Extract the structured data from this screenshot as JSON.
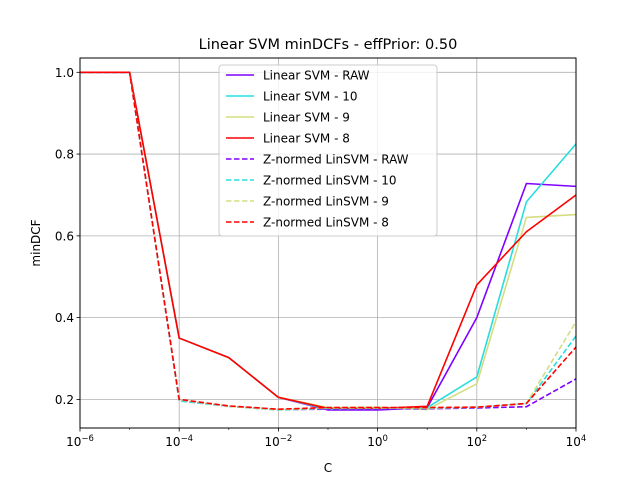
{
  "chart_data": {
    "type": "line",
    "title": "Linear SVM minDCFs - effPrior: 0.50",
    "xlabel": "C",
    "ylabel": "minDCF",
    "xscale": "log",
    "xlim": [
      1e-06,
      10000.0
    ],
    "ylim": [
      0.13,
      1.035
    ],
    "grid": true,
    "legend_position": "top-center",
    "x_tick_labels": [
      {
        "base": "10",
        "exp": "−6"
      },
      {
        "base": "10",
        "exp": "−4"
      },
      {
        "base": "10",
        "exp": "−2"
      },
      {
        "base": "10",
        "exp": "0"
      },
      {
        "base": "10",
        "exp": "2"
      },
      {
        "base": "10",
        "exp": "4"
      }
    ],
    "x_tick_values": [
      1e-06,
      0.0001,
      0.01,
      1,
      100,
      10000
    ],
    "y_ticks": [
      0.2,
      0.4,
      0.6,
      0.8,
      1.0
    ],
    "y_tick_labels": [
      "0.2",
      "0.4",
      "0.6",
      "0.8",
      "1.0"
    ],
    "x": [
      1e-06,
      1e-05,
      0.0001,
      0.001,
      0.01,
      0.1,
      1,
      10,
      100,
      1000,
      10000
    ],
    "series": [
      {
        "name": "Linear SVM - RAW",
        "color": "#8000ff",
        "dash": "solid",
        "values": [
          1.0,
          1.0,
          0.35,
          0.302,
          0.205,
          0.174,
          0.174,
          0.18,
          0.4,
          0.728,
          0.721
        ]
      },
      {
        "name": "Linear SVM - 10",
        "color": "#2adddd",
        "dash": "solid",
        "values": [
          1.0,
          1.0,
          0.35,
          0.302,
          0.205,
          0.176,
          0.178,
          0.18,
          0.255,
          0.683,
          0.825
        ]
      },
      {
        "name": "Linear SVM - 9",
        "color": "#d4dd80",
        "dash": "solid",
        "values": [
          1.0,
          1.0,
          0.35,
          0.302,
          0.205,
          0.18,
          0.181,
          0.175,
          0.238,
          0.645,
          0.652
        ]
      },
      {
        "name": "Linear SVM - 8",
        "color": "#ff0000",
        "dash": "solid",
        "values": [
          1.0,
          1.0,
          0.35,
          0.302,
          0.205,
          0.178,
          0.178,
          0.183,
          0.48,
          0.61,
          0.7
        ]
      },
      {
        "name": "Z-normed LinSVM - RAW",
        "color": "#8000ff",
        "dash": "dashed",
        "values": [
          1.0,
          1.0,
          0.197,
          0.183,
          0.175,
          0.176,
          0.177,
          0.177,
          0.179,
          0.182,
          0.25
        ]
      },
      {
        "name": "Z-normed LinSVM - 10",
        "color": "#2adddd",
        "dash": "dashed",
        "values": [
          1.0,
          1.0,
          0.196,
          0.183,
          0.174,
          0.178,
          0.178,
          0.178,
          0.181,
          0.19,
          0.355
        ]
      },
      {
        "name": "Z-normed LinSVM - 9",
        "color": "#d4dd80",
        "dash": "dashed",
        "values": [
          1.0,
          1.0,
          0.199,
          0.183,
          0.175,
          0.179,
          0.179,
          0.179,
          0.181,
          0.19,
          0.39
        ]
      },
      {
        "name": "Z-normed LinSVM - 8",
        "color": "#ff0000",
        "dash": "dashed",
        "values": [
          1.0,
          1.0,
          0.2,
          0.184,
          0.176,
          0.18,
          0.18,
          0.18,
          0.181,
          0.19,
          0.328
        ]
      }
    ]
  }
}
